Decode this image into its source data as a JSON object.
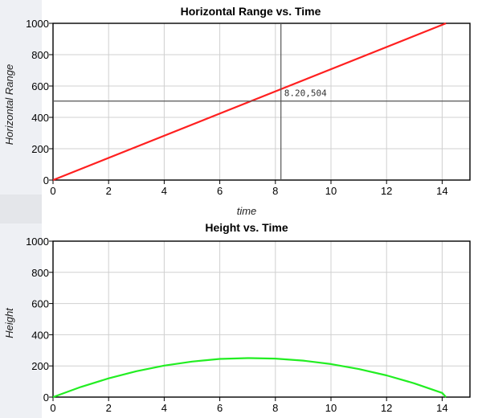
{
  "chart_data": [
    {
      "type": "line",
      "title": "Horizontal Range vs. Time",
      "xlabel": "time",
      "ylabel": "Horizontal Range",
      "xlim": [
        0,
        15
      ],
      "ylim": [
        0,
        1000
      ],
      "xticks": [
        0,
        2,
        4,
        6,
        8,
        10,
        12,
        14
      ],
      "yticks": [
        0,
        200,
        400,
        600,
        800,
        1000
      ],
      "grid": true,
      "series": [
        {
          "color": "#ff2020",
          "x": [
            0,
            14.14
          ],
          "y": [
            0,
            1000
          ]
        }
      ],
      "crosshair": {
        "x": 8.2,
        "y": 504,
        "label": "8.20,504"
      }
    },
    {
      "type": "line",
      "title": "Height vs. Time",
      "xlabel": "",
      "ylabel": "Height",
      "xlim": [
        0,
        15
      ],
      "ylim": [
        0,
        1000
      ],
      "xticks": [
        0,
        2,
        4,
        6,
        8,
        10,
        12,
        14
      ],
      "yticks": [
        0,
        200,
        400,
        600,
        800,
        1000
      ],
      "grid": true,
      "series": [
        {
          "color": "#22ee22",
          "x": [
            0,
            1,
            2,
            3,
            4,
            5,
            6,
            7,
            7.07,
            8,
            9,
            10,
            11,
            12,
            13,
            14,
            14.14
          ],
          "y": [
            0,
            65,
            120,
            166,
            202,
            228,
            245,
            250,
            250,
            247,
            234,
            212,
            180,
            139,
            88,
            27,
            0
          ]
        }
      ]
    }
  ]
}
